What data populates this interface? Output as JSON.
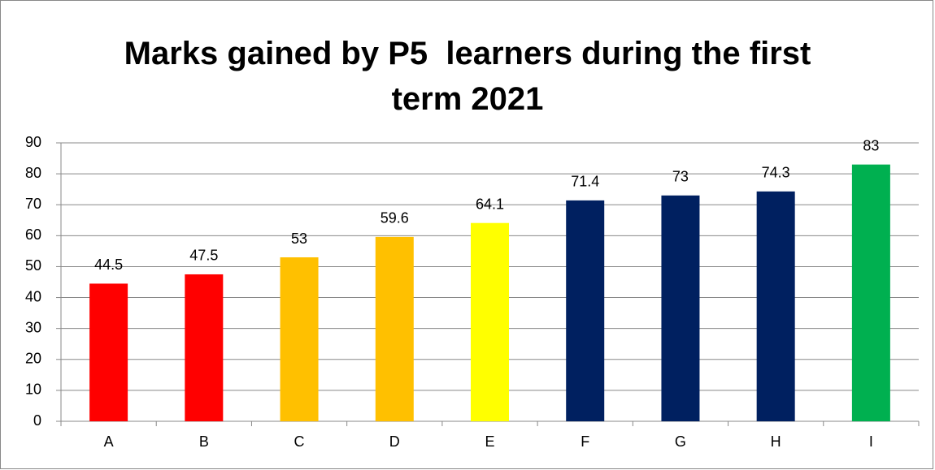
{
  "chart_data": {
    "type": "bar",
    "title": "Marks gained by P5  learners during the first term 2021",
    "categories": [
      "A",
      "B",
      "C",
      "D",
      "E",
      "F",
      "G",
      "H",
      "I"
    ],
    "values": [
      44.5,
      47.5,
      53,
      59.6,
      64.1,
      71.4,
      73,
      74.3,
      83
    ],
    "colors": [
      "#ff0000",
      "#ff0000",
      "#ffc000",
      "#ffc000",
      "#ffff00",
      "#002060",
      "#002060",
      "#002060",
      "#00b050"
    ],
    "ylim": [
      0,
      90
    ],
    "yticks": [
      0,
      10,
      20,
      30,
      40,
      50,
      60,
      70,
      80,
      90
    ],
    "grid": true
  }
}
